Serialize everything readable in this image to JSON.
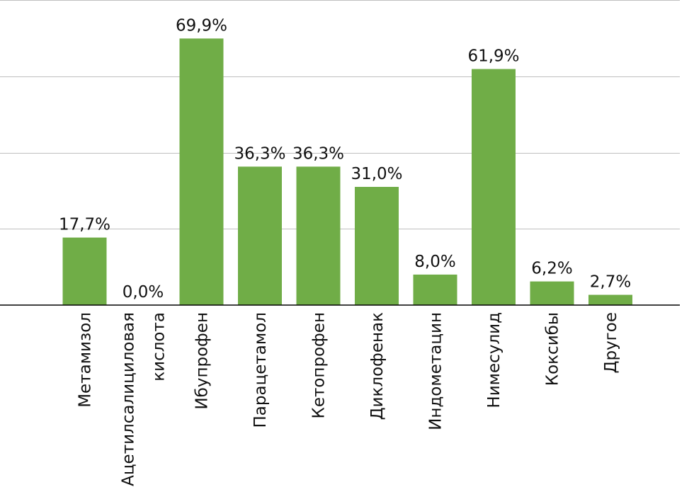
{
  "chart_data": {
    "type": "bar",
    "categories": [
      [
        "Метамизол"
      ],
      [
        "Ацетилсалициловая",
        "кислота"
      ],
      [
        "Ибупрофен"
      ],
      [
        "Парацетамол"
      ],
      [
        "Кетопрофен"
      ],
      [
        "Диклофенак"
      ],
      [
        "Индометацин"
      ],
      [
        "Нимесулид"
      ],
      [
        "Коксибы"
      ],
      [
        "Другое"
      ]
    ],
    "values": [
      17.7,
      0.0,
      69.9,
      36.3,
      36.3,
      31.0,
      8.0,
      61.9,
      6.2,
      2.7
    ],
    "value_labels": [
      "17,7%",
      "0,0%",
      "69,9%",
      "36,3%",
      "36,3%",
      "31,0%",
      "8,0%",
      "61,9%",
      "6,2%",
      "2,7%"
    ],
    "ylim": [
      0,
      80
    ],
    "grid": true,
    "y_tick_labels_shown": false,
    "bar_color": "#70ad47"
  }
}
